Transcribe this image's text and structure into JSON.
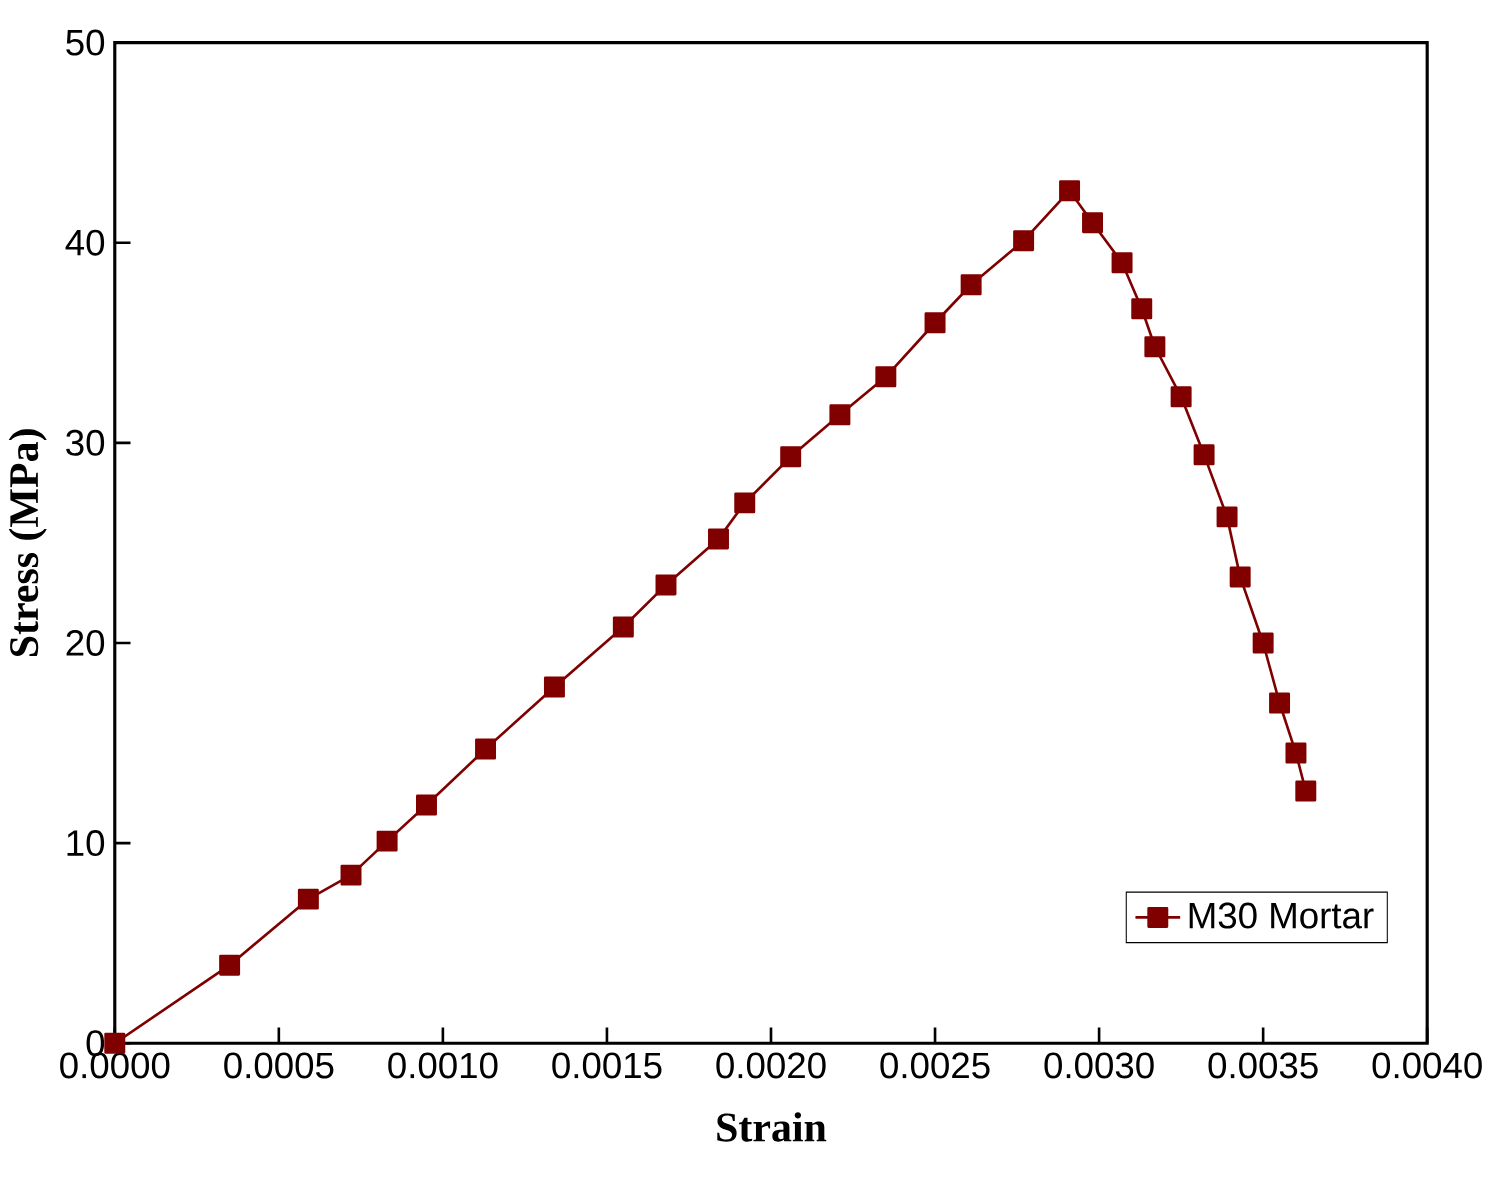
{
  "chart_data": {
    "type": "line",
    "xlabel": "Strain",
    "ylabel": "Stress (MPa)",
    "xlim": [
      0,
      0.004
    ],
    "ylim": [
      0,
      50
    ],
    "xticks": [
      {
        "value": 0,
        "label": "0.0000"
      },
      {
        "value": 0.0005,
        "label": "0.0005"
      },
      {
        "value": 0.001,
        "label": "0.0010"
      },
      {
        "value": 0.0015,
        "label": "0.0015"
      },
      {
        "value": 0.002,
        "label": "0.0020"
      },
      {
        "value": 0.0025,
        "label": "0.0025"
      },
      {
        "value": 0.003,
        "label": "0.0030"
      },
      {
        "value": 0.0035,
        "label": "0.0035"
      },
      {
        "value": 0.004,
        "label": "0.0040"
      }
    ],
    "yticks": [
      0,
      10,
      20,
      30,
      40,
      50
    ],
    "x": [
      0,
      0.00035,
      0.00059,
      0.00072,
      0.00083,
      0.00095,
      0.00113,
      0.00134,
      0.00155,
      0.00168,
      0.00184,
      0.00192,
      0.00206,
      0.00221,
      0.00235,
      0.0025,
      0.00261,
      0.00277,
      0.00291,
      0.00298,
      0.00307,
      0.00313,
      0.00317,
      0.00325,
      0.00332,
      0.00339,
      0.00343,
      0.0035,
      0.00355,
      0.0036,
      0.00363
    ],
    "series": [
      {
        "name": "M30 Mortar",
        "color": "#800000",
        "values": [
          0,
          3.9,
          7.2,
          8.4,
          10.1,
          11.9,
          14.7,
          17.8,
          20.8,
          22.9,
          25.2,
          27.0,
          29.3,
          31.4,
          33.3,
          36.0,
          37.9,
          40.1,
          42.6,
          41.0,
          39.0,
          36.7,
          34.8,
          32.3,
          29.4,
          26.3,
          23.3,
          20.0,
          17.0,
          14.5,
          12.6
        ]
      }
    ],
    "marker": "square",
    "line_style": "solid",
    "legend": "bottom right",
    "grid": false
  }
}
